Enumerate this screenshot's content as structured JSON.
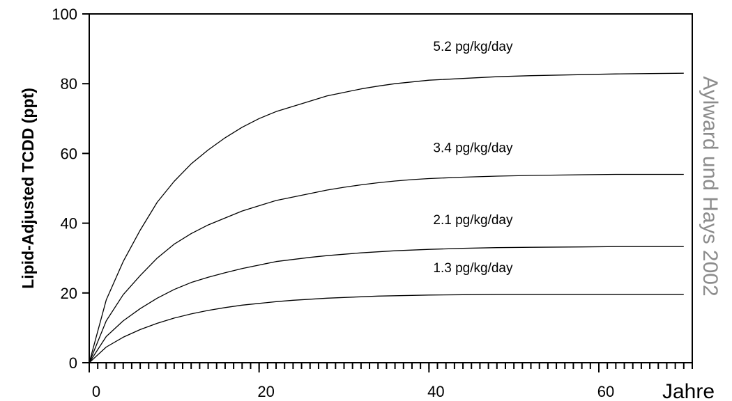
{
  "chart_data": {
    "type": "line",
    "title": "",
    "xlabel": "Jahre",
    "ylabel": "Lipid-Adjusted TCDD (ppt)",
    "credit": "Aylward und Hays 2002",
    "xlim": [
      0,
      71
    ],
    "ylim": [
      0,
      100
    ],
    "x_ticks": [
      0,
      20,
      40,
      60
    ],
    "y_ticks": [
      0,
      20,
      40,
      60,
      80,
      100
    ],
    "x_minor_step": 1,
    "grid": false,
    "legend": "none",
    "series": [
      {
        "name": "5.2 pg/kg/day",
        "x": [
          0,
          2,
          4,
          6,
          8,
          10,
          12,
          14,
          16,
          18,
          20,
          22,
          24,
          26,
          28,
          30,
          32,
          34,
          36,
          38,
          40,
          44,
          48,
          52,
          58,
          62,
          66,
          70
        ],
        "y": [
          0,
          18,
          29,
          38,
          46,
          52,
          57,
          61,
          64.5,
          67.5,
          70,
          72,
          73.5,
          75,
          76.5,
          77.5,
          78.5,
          79.3,
          80,
          80.5,
          81,
          81.5,
          82,
          82.3,
          82.6,
          82.8,
          82.9,
          83
        ]
      },
      {
        "name": "3.4 pg/kg/day",
        "x": [
          0,
          2,
          4,
          6,
          8,
          10,
          12,
          14,
          16,
          18,
          20,
          22,
          24,
          26,
          28,
          30,
          32,
          34,
          36,
          38,
          40,
          44,
          48,
          52,
          58,
          62,
          66,
          70
        ],
        "y": [
          0,
          12,
          19.5,
          25,
          30,
          34,
          37,
          39.5,
          41.5,
          43.5,
          45,
          46.5,
          47.5,
          48.5,
          49.5,
          50.3,
          51,
          51.6,
          52.1,
          52.5,
          52.8,
          53.2,
          53.5,
          53.7,
          53.9,
          54,
          54,
          54
        ]
      },
      {
        "name": "2.1 pg/kg/day",
        "x": [
          0,
          2,
          4,
          6,
          8,
          10,
          12,
          14,
          16,
          18,
          20,
          22,
          24,
          26,
          28,
          30,
          32,
          34,
          36,
          38,
          40,
          44,
          48,
          52,
          58,
          62,
          66,
          70
        ],
        "y": [
          0,
          7.5,
          12,
          15.5,
          18.5,
          21,
          23,
          24.5,
          25.8,
          27,
          28,
          29,
          29.6,
          30.2,
          30.7,
          31.1,
          31.5,
          31.8,
          32.1,
          32.3,
          32.5,
          32.8,
          33,
          33.1,
          33.2,
          33.3,
          33.3,
          33.3
        ]
      },
      {
        "name": "1.3 pg/kg/day",
        "x": [
          0,
          2,
          4,
          6,
          8,
          10,
          12,
          14,
          16,
          18,
          20,
          22,
          24,
          26,
          28,
          30,
          32,
          34,
          36,
          38,
          40,
          44,
          48,
          52,
          58,
          62,
          66,
          70
        ],
        "y": [
          0,
          4.5,
          7.3,
          9.5,
          11.3,
          12.8,
          14,
          15,
          15.8,
          16.5,
          17,
          17.5,
          17.9,
          18.2,
          18.5,
          18.7,
          18.9,
          19.1,
          19.2,
          19.3,
          19.4,
          19.5,
          19.6,
          19.6,
          19.6,
          19.6,
          19.6,
          19.6
        ]
      }
    ]
  }
}
